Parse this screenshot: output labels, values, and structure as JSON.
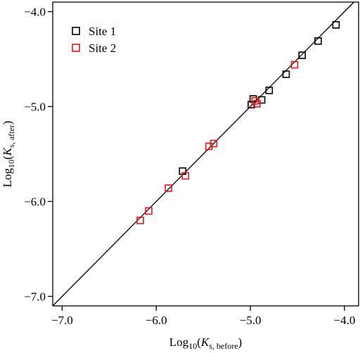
{
  "chart_data": {
    "type": "scatter",
    "x_axis_title": {
      "prefix": "Log",
      "sub": "10",
      "open": "(",
      "var": "K",
      "var_sub": "s, before",
      "close": ")"
    },
    "y_axis_title": {
      "prefix": "Log",
      "sub": "10",
      "open": "(",
      "var": "K",
      "var_sub": "s, after",
      "close": ")"
    },
    "xlim": [
      -7.1,
      -3.85
    ],
    "ylim": [
      -7.1,
      -3.9
    ],
    "xticks": [
      -7.0,
      -6.0,
      -5.0,
      -4.0
    ],
    "yticks": [
      -7.0,
      -6.0,
      -5.0,
      -4.0
    ],
    "x_tick_labels": [
      "−7.0",
      "−6.0",
      "−5.0",
      "−4.0"
    ],
    "y_tick_labels": [
      "−7.0",
      "−6.0",
      "−5.0",
      "−4.0"
    ],
    "reference_line": "1:1",
    "grid": false,
    "legend_position": "top-left",
    "series": [
      {
        "name": "Site 1",
        "color": "#000000",
        "marker": "open-square",
        "points": [
          {
            "x": -5.72,
            "y": -5.68
          },
          {
            "x": -4.99,
            "y": -4.98
          },
          {
            "x": -4.97,
            "y": -4.92
          },
          {
            "x": -4.88,
            "y": -4.93
          },
          {
            "x": -4.8,
            "y": -4.83
          },
          {
            "x": -4.62,
            "y": -4.66
          },
          {
            "x": -4.45,
            "y": -4.46
          },
          {
            "x": -4.28,
            "y": -4.31
          },
          {
            "x": -4.09,
            "y": -4.14
          }
        ]
      },
      {
        "name": "Site 2",
        "color": "#e8141a",
        "marker": "open-square",
        "points": [
          {
            "x": -6.17,
            "y": -6.2
          },
          {
            "x": -6.08,
            "y": -6.1
          },
          {
            "x": -5.87,
            "y": -5.86
          },
          {
            "x": -5.69,
            "y": -5.73
          },
          {
            "x": -5.44,
            "y": -5.42
          },
          {
            "x": -5.39,
            "y": -5.39
          },
          {
            "x": -4.95,
            "y": -4.94
          },
          {
            "x": -4.93,
            "y": -4.97
          },
          {
            "x": -4.53,
            "y": -4.56
          }
        ]
      }
    ]
  }
}
